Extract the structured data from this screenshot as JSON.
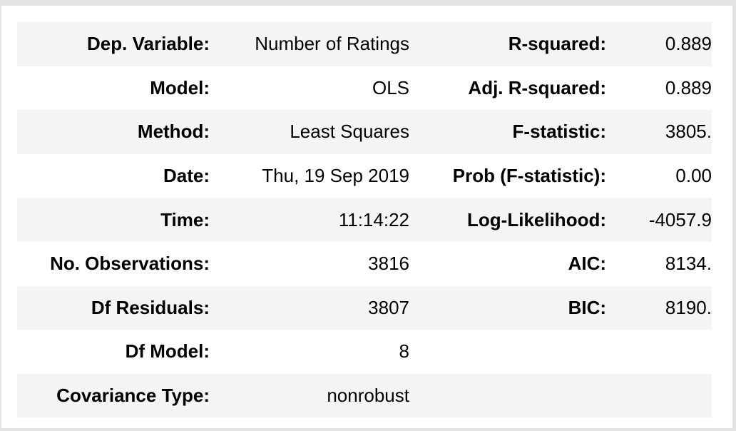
{
  "rows": [
    {
      "label1": "Dep. Variable:",
      "value1": "Number of Ratings",
      "label2": "R-squared:",
      "value2": "0.889"
    },
    {
      "label1": "Model:",
      "value1": "OLS",
      "label2": "Adj. R-squared:",
      "value2": "0.889"
    },
    {
      "label1": "Method:",
      "value1": "Least Squares",
      "label2": "F-statistic:",
      "value2": "3805."
    },
    {
      "label1": "Date:",
      "value1": "Thu, 19 Sep 2019",
      "label2": "Prob (F-statistic):",
      "value2": "0.00"
    },
    {
      "label1": "Time:",
      "value1": "11:14:22",
      "label2": "Log-Likelihood:",
      "value2": "-4057.9"
    },
    {
      "label1": "No. Observations:",
      "value1": "3816",
      "label2": "AIC:",
      "value2": "8134."
    },
    {
      "label1": "Df Residuals:",
      "value1": "3807",
      "label2": "BIC:",
      "value2": "8190."
    },
    {
      "label1": "Df Model:",
      "value1": "8",
      "label2": "",
      "value2": ""
    },
    {
      "label1": "Covariance Type:",
      "value1": "nonrobust",
      "label2": "",
      "value2": ""
    }
  ]
}
